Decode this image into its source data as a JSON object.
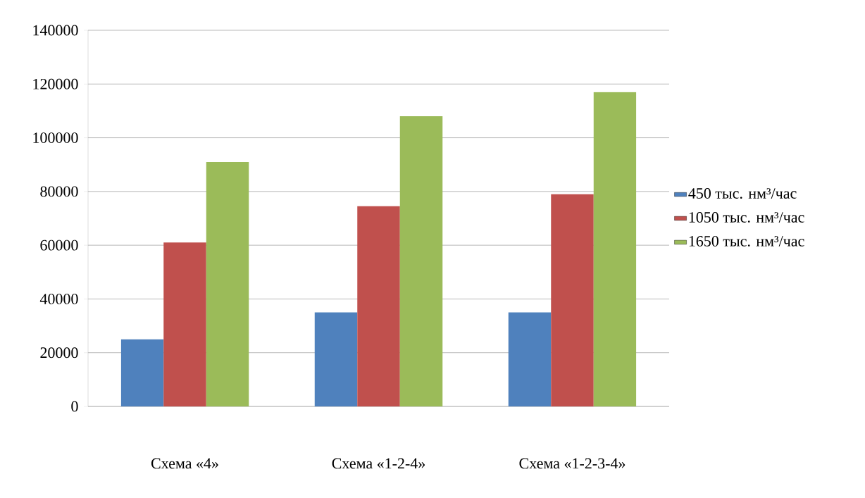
{
  "chart_data": {
    "type": "bar",
    "categories": [
      "Схема «4»",
      "Схема «1-2-4»",
      "Схема «1-2-3-4»"
    ],
    "series": [
      {
        "name": "450 тыс. нм³/час",
        "color": "#4f81bd",
        "values": [
          25000,
          35000,
          35000
        ]
      },
      {
        "name": "1050 тыс. нм³/час",
        "color": "#c0504d",
        "values": [
          61000,
          74500,
          79000
        ]
      },
      {
        "name": "1650 тыс. нм³/час",
        "color": "#9bbb59",
        "values": [
          91000,
          108000,
          117000
        ]
      }
    ],
    "ylim": [
      0,
      140000
    ],
    "yticks": [
      0,
      20000,
      40000,
      60000,
      80000,
      100000,
      120000,
      140000
    ],
    "grid": "y",
    "legend": "right"
  }
}
